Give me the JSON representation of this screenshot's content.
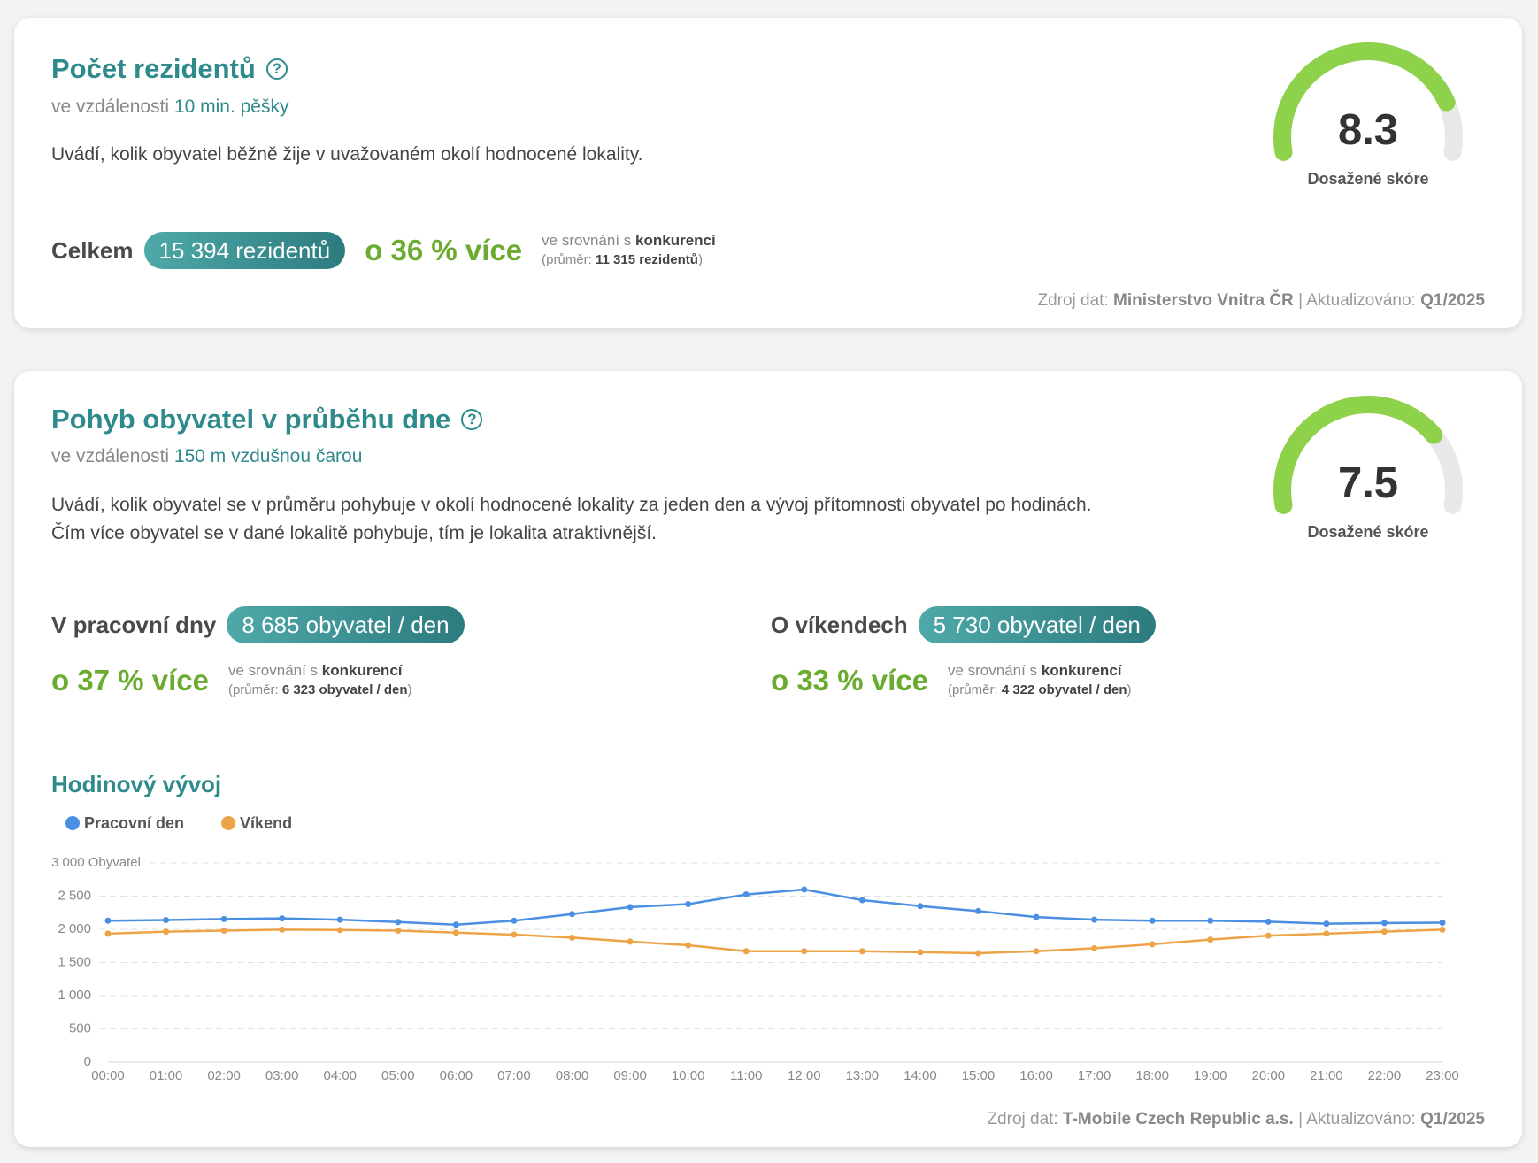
{
  "cards": [
    {
      "title": "Počet rezidentů",
      "subtitle_prefix": "ve vzdálenosti",
      "subtitle_value": "10 min. pěšky",
      "description": "Uvádí, kolik obyvatel běžně žije v uvažovaném okolí hodnocené lokality.",
      "score": 8.3,
      "score_range": [
        0,
        10
      ],
      "score_label": "Dosažené skóre",
      "stats": [
        {
          "label": "Celkem",
          "value": "15 394 rezidentů",
          "difference": "o 36 % více",
          "compare_prefix": "ve srovnání s",
          "compare_target": "konkurencí",
          "average_prefix": "(průměr:",
          "average_value": "11 315 rezidentů",
          "average_suffix": ")"
        }
      ],
      "source_label": "Zdroj dat:",
      "source": "Ministerstvo Vnitra ČR",
      "separator": "|",
      "updated_label": "Aktualizováno:",
      "updated": "Q1/2025"
    },
    {
      "title": "Pohyb obyvatel v průběhu dne",
      "subtitle_prefix": "ve vzdálenosti",
      "subtitle_value": "150 m vzdušnou čarou",
      "description": "Uvádí, kolik obyvatel se v průměru pohybuje v okolí hodnocené lokality za jeden den a vývoj přítomnosti obyvatel po hodinách. Čím více obyvatel se v dané lokalitě pohybuje, tím je lokalita atraktivnější.",
      "score": 7.5,
      "score_range": [
        0,
        10
      ],
      "score_label": "Dosažené skóre",
      "stats": [
        {
          "label": "V pracovní dny",
          "value": "8 685 obyvatel / den",
          "difference": "o 37 % více",
          "compare_prefix": "ve srovnání s",
          "compare_target": "konkurencí",
          "average_prefix": "(průměr:",
          "average_value": "6 323 obyvatel / den",
          "average_suffix": ")"
        },
        {
          "label": "O víkendech",
          "value": "5 730 obyvatel / den",
          "difference": "o 33 % více",
          "compare_prefix": "ve srovnání s",
          "compare_target": "konkurencí",
          "average_prefix": "(průměr:",
          "average_value": "4 322 obyvatel / den",
          "average_suffix": ")"
        }
      ],
      "source_label": "Zdroj dat:",
      "source": "T-Mobile Czech Republic a.s.",
      "separator": "|",
      "updated_label": "Aktualizováno:",
      "updated": "Q1/2025"
    }
  ],
  "chart_data": {
    "type": "line",
    "title": "Hodinový vývoj",
    "categories": [
      "00:00",
      "01:00",
      "02:00",
      "03:00",
      "04:00",
      "05:00",
      "06:00",
      "07:00",
      "08:00",
      "09:00",
      "10:00",
      "11:00",
      "12:00",
      "13:00",
      "14:00",
      "15:00",
      "16:00",
      "17:00",
      "18:00",
      "19:00",
      "20:00",
      "21:00",
      "22:00",
      "23:00"
    ],
    "series": [
      {
        "name": "Pracovní den",
        "color": "#4a8fe2",
        "values": [
          2130,
          2140,
          2155,
          2165,
          2145,
          2110,
          2070,
          2130,
          2230,
          2335,
          2380,
          2525,
          2600,
          2440,
          2350,
          2275,
          2185,
          2145,
          2130,
          2130,
          2115,
          2085,
          2095,
          2100
        ]
      },
      {
        "name": "Víkend",
        "color": "#eda448",
        "values": [
          1935,
          1965,
          1980,
          1995,
          1990,
          1980,
          1950,
          1920,
          1875,
          1815,
          1760,
          1670,
          1670,
          1670,
          1655,
          1640,
          1670,
          1715,
          1775,
          1845,
          1905,
          1935,
          1965,
          1995
        ]
      }
    ],
    "ylim": [
      0,
      3000
    ],
    "yticks": [
      0,
      500,
      {
        "value": 1000,
        "label": "1 000"
      },
      {
        "value": 1500,
        "label": "1 500"
      },
      {
        "value": 2000,
        "label": "2 000"
      },
      {
        "value": 2500,
        "label": "2 500"
      },
      {
        "value": 3000,
        "label": "3 000 Obyvatel"
      }
    ],
    "grid": true
  }
}
